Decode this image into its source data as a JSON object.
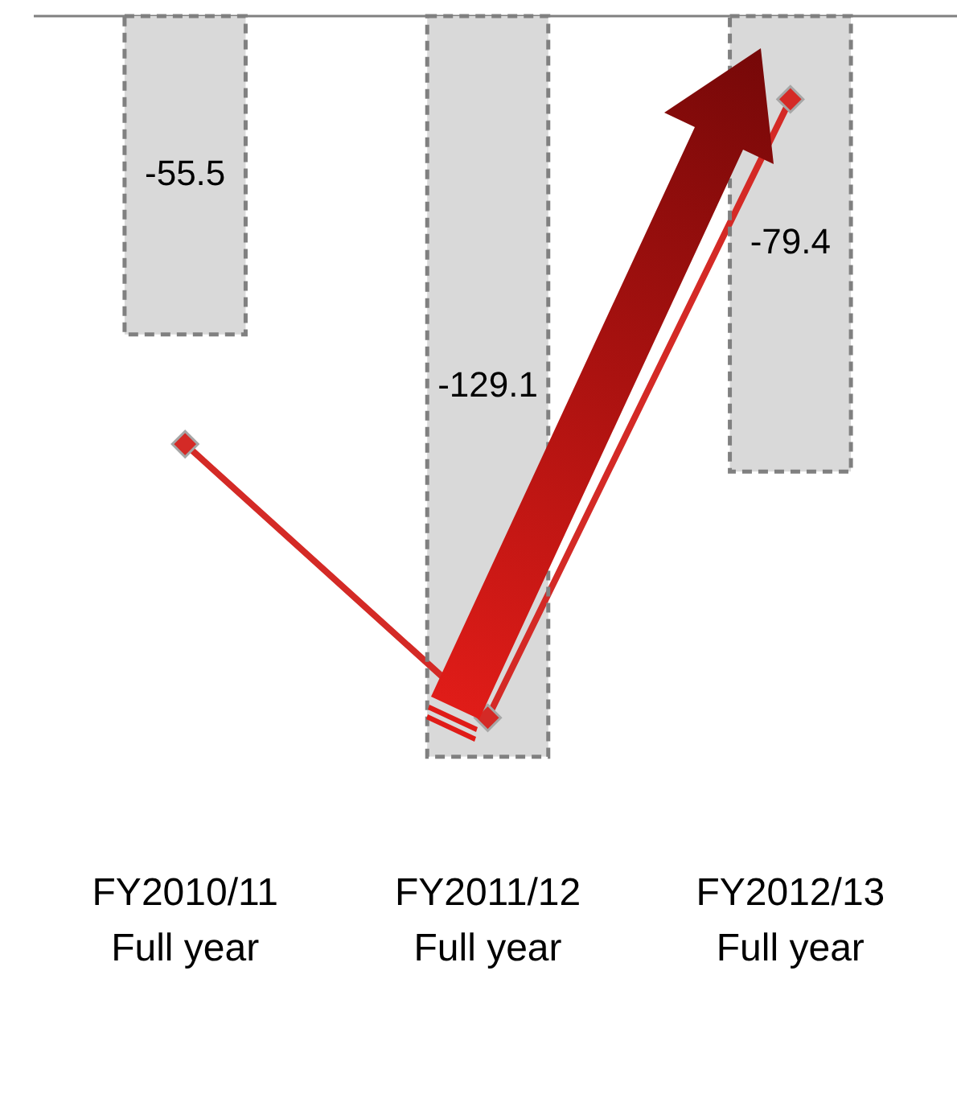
{
  "chart_data": {
    "type": "bar",
    "categories": [
      "FY2010/11\nFull year",
      "FY2011/12\nFull year",
      "FY2012/13\nFull year"
    ],
    "series": [
      {
        "color": "#d9d9d9",
        "values": [
          -55.5,
          -129.1,
          -79.4
        ],
        "value_labels": [
          "-55.5",
          "-129.1",
          "-79.4"
        ]
      },
      {
        "type": "line",
        "color": "#d42a26",
        "values": [
          -74.6,
          -122.3,
          -14.5
        ]
      }
    ],
    "ylim": [
      -129.1,
      0
    ],
    "tick_labels": "x",
    "marker": "diamond",
    "line_style": "solid",
    "grid": false,
    "legend": false
  }
}
